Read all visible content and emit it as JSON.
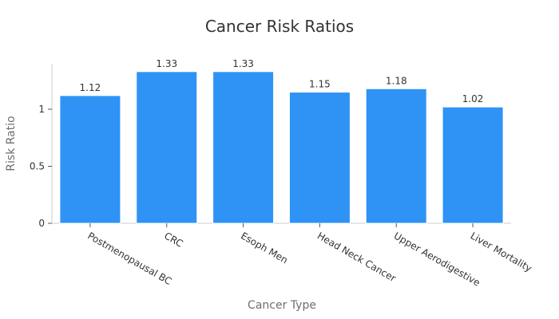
{
  "chart_data": {
    "type": "bar",
    "title": "Cancer Risk Ratios",
    "xlabel": "Cancer Type",
    "ylabel": "Risk Ratio",
    "categories": [
      "Postmenopausal BC",
      "CRC",
      "Esoph Men",
      "Head Neck Cancer",
      "Upper Aerodigestive",
      "Liver Mortality"
    ],
    "values": [
      1.12,
      1.33,
      1.33,
      1.15,
      1.18,
      1.02
    ],
    "data_labels": [
      "1.12",
      "1.33",
      "1.33",
      "1.15",
      "1.18",
      "1.02"
    ],
    "y_ticks": [
      0,
      0.5,
      1
    ],
    "y_tick_labels": [
      "0",
      "0.5",
      "1"
    ],
    "ylim": [
      0,
      1.4
    ],
    "grid": false,
    "legend": "none",
    "bar_color": "#2e93f5"
  }
}
